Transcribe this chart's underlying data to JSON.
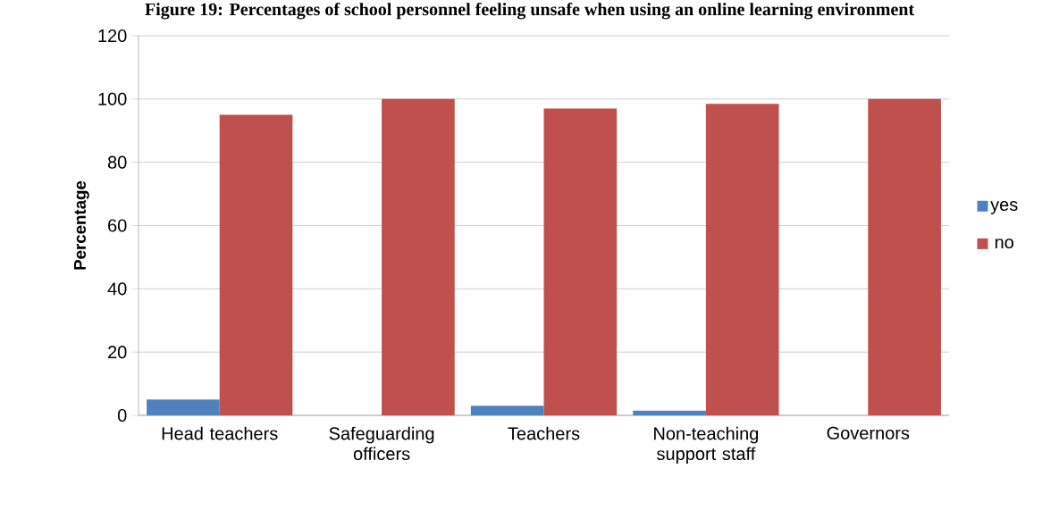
{
  "chart_data": {
    "type": "bar",
    "title": "Figure 19: Percentages of school personnel feeling unsafe when using an online learning environment",
    "ylabel": "Percentage",
    "categories": [
      "Head teachers",
      "Safeguarding officers",
      "Teachers",
      "Non-teaching support staff",
      "Governors"
    ],
    "series": [
      {
        "name": "yes",
        "color": "#4f81bd",
        "values": [
          5,
          0,
          3,
          1.5,
          0
        ]
      },
      {
        "name": "no",
        "color": "#c0504d",
        "values": [
          95,
          100,
          97,
          98.5,
          100
        ]
      }
    ],
    "ylim": [
      0,
      120
    ],
    "yticks": [
      0,
      20,
      40,
      60,
      80,
      100,
      120
    ],
    "grid": "y",
    "legend": "right"
  }
}
